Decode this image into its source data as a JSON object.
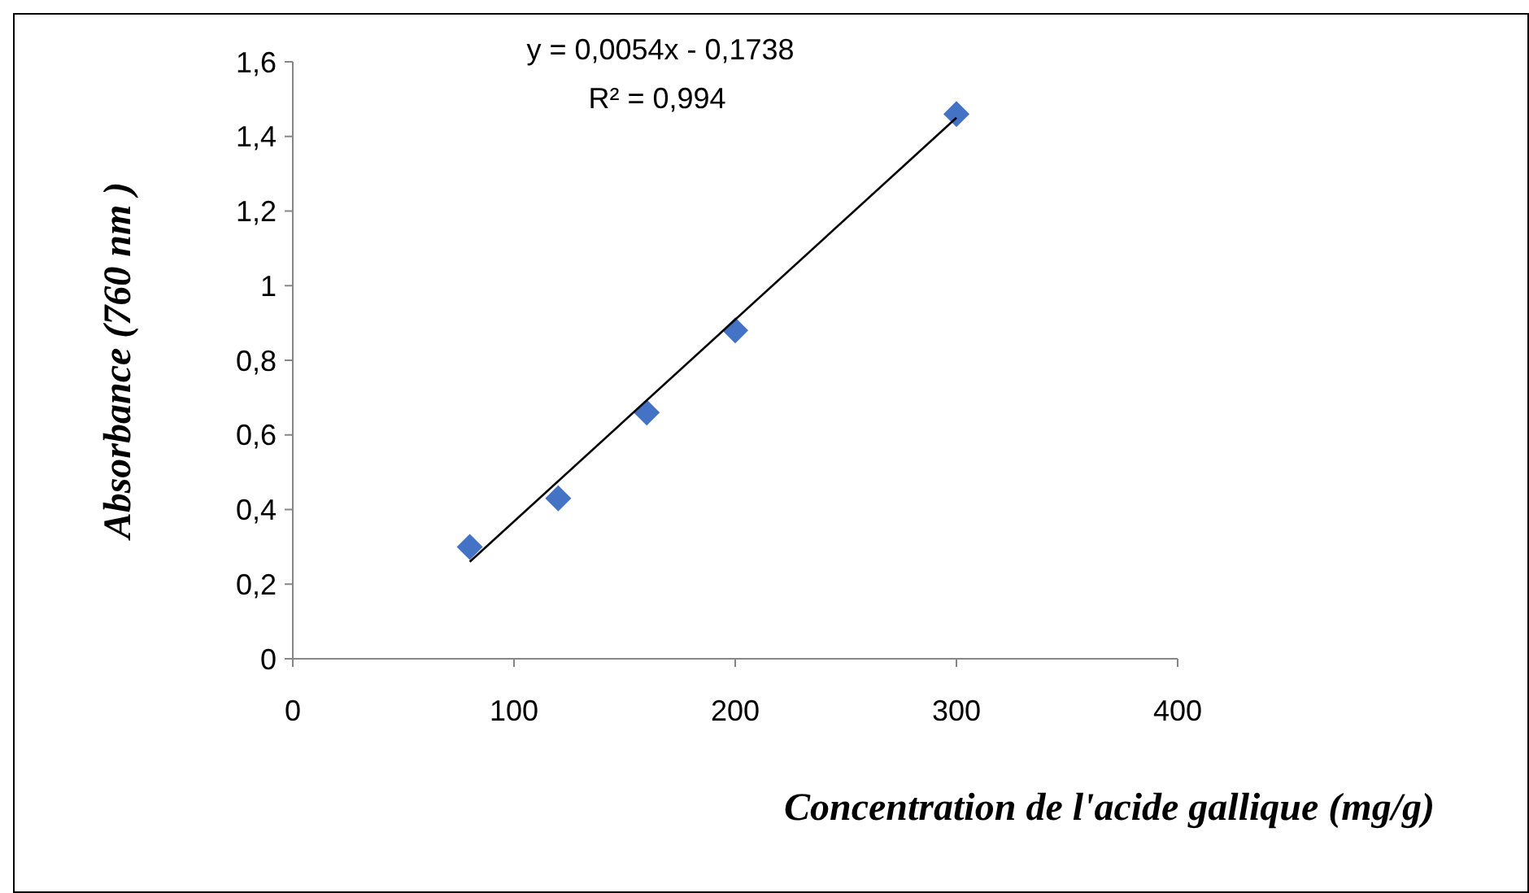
{
  "chart_data": {
    "type": "scatter",
    "xlabel": "Concentration de l'acide gallique (mg/g)",
    "ylabel": "Absorbance (760 nm )",
    "annotations": [
      "y = 0,0054x - 0,1738",
      "R² = 0,994"
    ],
    "xlim": [
      0,
      400
    ],
    "xticks": [
      0,
      100,
      200,
      300,
      400
    ],
    "ylim": [
      0,
      1.6
    ],
    "yticks": [
      0,
      {
        "value": 0.2,
        "label": "0,2"
      },
      {
        "value": 0.4,
        "label": "0,4"
      },
      {
        "value": 0.6,
        "label": "0,6"
      },
      {
        "value": 0.8,
        "label": "0,8"
      },
      1,
      {
        "value": 1.2,
        "label": "1,2"
      },
      {
        "value": 1.4,
        "label": "1,4"
      },
      {
        "value": 1.6,
        "label": "1,6"
      }
    ],
    "series": [
      {
        "type": "scatter",
        "color": "#4472c4",
        "marker": "diamond",
        "x": [
          80,
          120,
          160,
          200,
          300
        ],
        "values": [
          0.3,
          0.43,
          0.66,
          0.88,
          1.46
        ]
      },
      {
        "type": "line",
        "color": "#000000",
        "marker": "none",
        "line_style": "solid",
        "x": [
          80,
          300
        ],
        "values": [
          0.26,
          1.45
        ]
      }
    ]
  }
}
